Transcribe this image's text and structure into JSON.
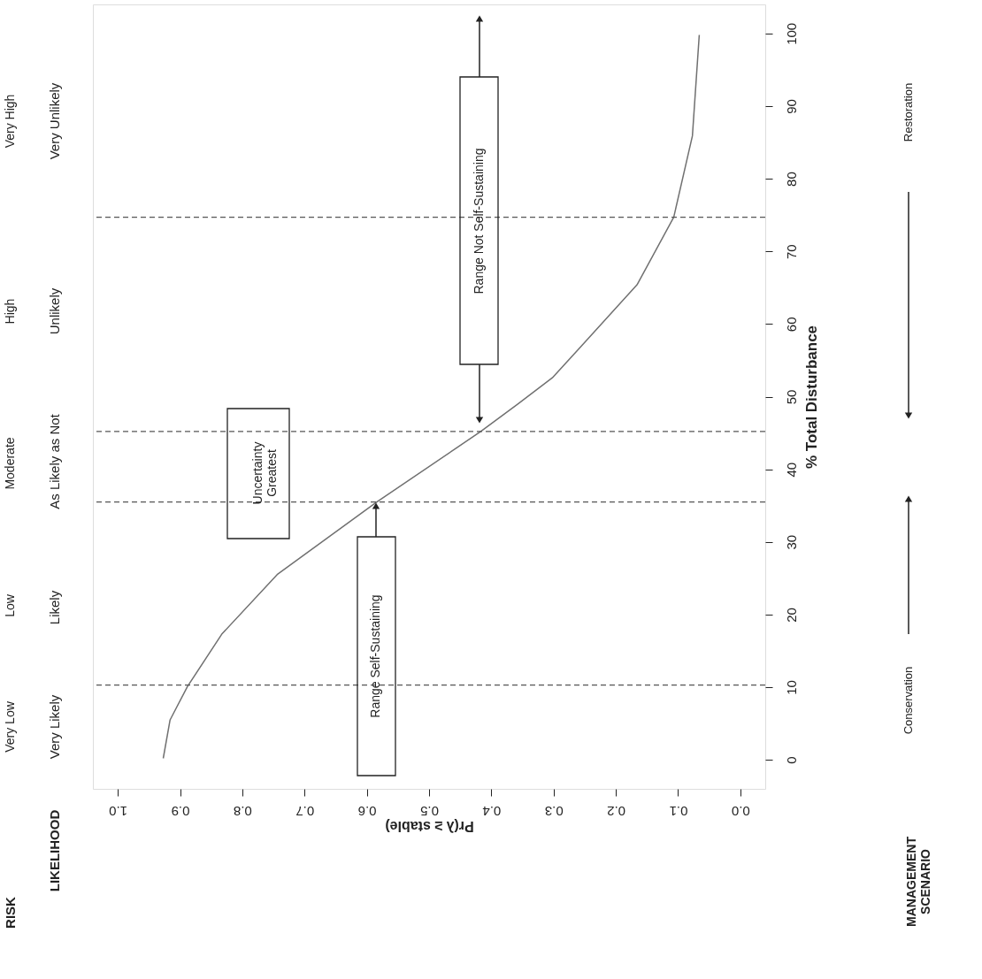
{
  "chart_data": {
    "type": "line",
    "xlabel": "Pr(λ ≥ stable)",
    "ylabel": "% Total Disturbance",
    "x": [
      0.927,
      0.916,
      0.888,
      0.833,
      0.744,
      0.584,
      0.417,
      0.357,
      0.302,
      0.254,
      0.166,
      0.107,
      0.077,
      0.066
    ],
    "series": [
      {
        "color": "#707070",
        "values": [
          0.2,
          5.5,
          10.1,
          17.3,
          25.5,
          35.5,
          45.2,
          49.0,
          52.6,
          57.1,
          65.4,
          74.7,
          85.9,
          99.8
        ]
      }
    ],
    "xlim": [
      1.04,
      -0.04
    ],
    "xticks": [
      {
        "value": 0,
        "label": "0.0"
      },
      {
        "value": 0.1,
        "label": "0.1"
      },
      {
        "value": 0.2,
        "label": "0.2"
      },
      {
        "value": 0.3,
        "label": "0.3"
      },
      {
        "value": 0.4,
        "label": "0.4"
      },
      {
        "value": 0.5,
        "label": "0.5"
      },
      {
        "value": 0.6,
        "label": "0.6"
      },
      {
        "value": 0.7,
        "label": "0.7"
      },
      {
        "value": 0.8,
        "label": "0.8"
      },
      {
        "value": 0.9,
        "label": "0.9"
      },
      {
        "value": 1.0,
        "label": "1.0"
      }
    ],
    "ylim": [
      -4,
      104
    ],
    "yticks": [
      0,
      10,
      20,
      30,
      40,
      50,
      60,
      70,
      80,
      90,
      100
    ],
    "ref_lines": [
      {
        "axis": "y",
        "value": 10.3,
        "line_style": "dashed",
        "color": "#555555"
      },
      {
        "axis": "y",
        "value": 35.5,
        "line_style": "dashed",
        "color": "#555555"
      },
      {
        "axis": "y",
        "value": 45.2,
        "line_style": "dashed",
        "color": "#555555"
      },
      {
        "axis": "y",
        "value": 74.7,
        "line_style": "dashed",
        "color": "#555555"
      }
    ],
    "annotations": [
      "RISK",
      "LIKELIHOOD",
      "Very Low",
      "Low",
      "Moderate",
      "High",
      "Very High",
      "Very Likely",
      "Likely",
      "As Likely as Not",
      "Unlikely",
      "Very Unlikely",
      "Uncertainty Greatest",
      "Range Self-Sustaining",
      "Range Not Self-Sustaining",
      "MANAGEMENT SCENARIO",
      "Conservation",
      "Restoration"
    ],
    "grid": false,
    "marker": "none",
    "line_style": "solid"
  }
}
